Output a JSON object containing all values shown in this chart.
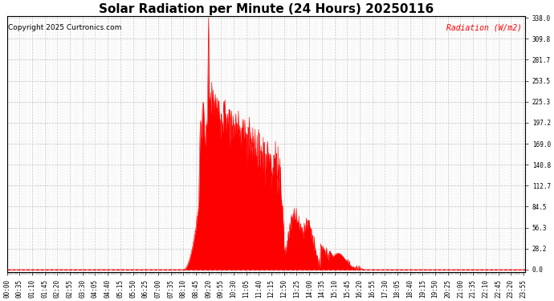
{
  "title": "Solar Radiation per Minute (24 Hours) 20250116",
  "copyright_text": "Copyright 2025 Curtronics.com",
  "legend_text": "Radiation (W/m2)",
  "y_label_values": [
    0.0,
    28.2,
    56.3,
    84.5,
    112.7,
    140.8,
    169.0,
    197.2,
    225.3,
    253.5,
    281.7,
    309.8,
    338.0
  ],
  "ymax": 338.0,
  "ymin": 0.0,
  "fill_color": "#FF0000",
  "line_color": "#FF0000",
  "bg_color": "#FFFFFF",
  "grid_color": "#BBBBBB",
  "dashed_line_color": "#FF0000",
  "title_fontsize": 11,
  "tick_fontsize": 5.5,
  "total_minutes": 1440,
  "tick_interval_minutes": 35
}
